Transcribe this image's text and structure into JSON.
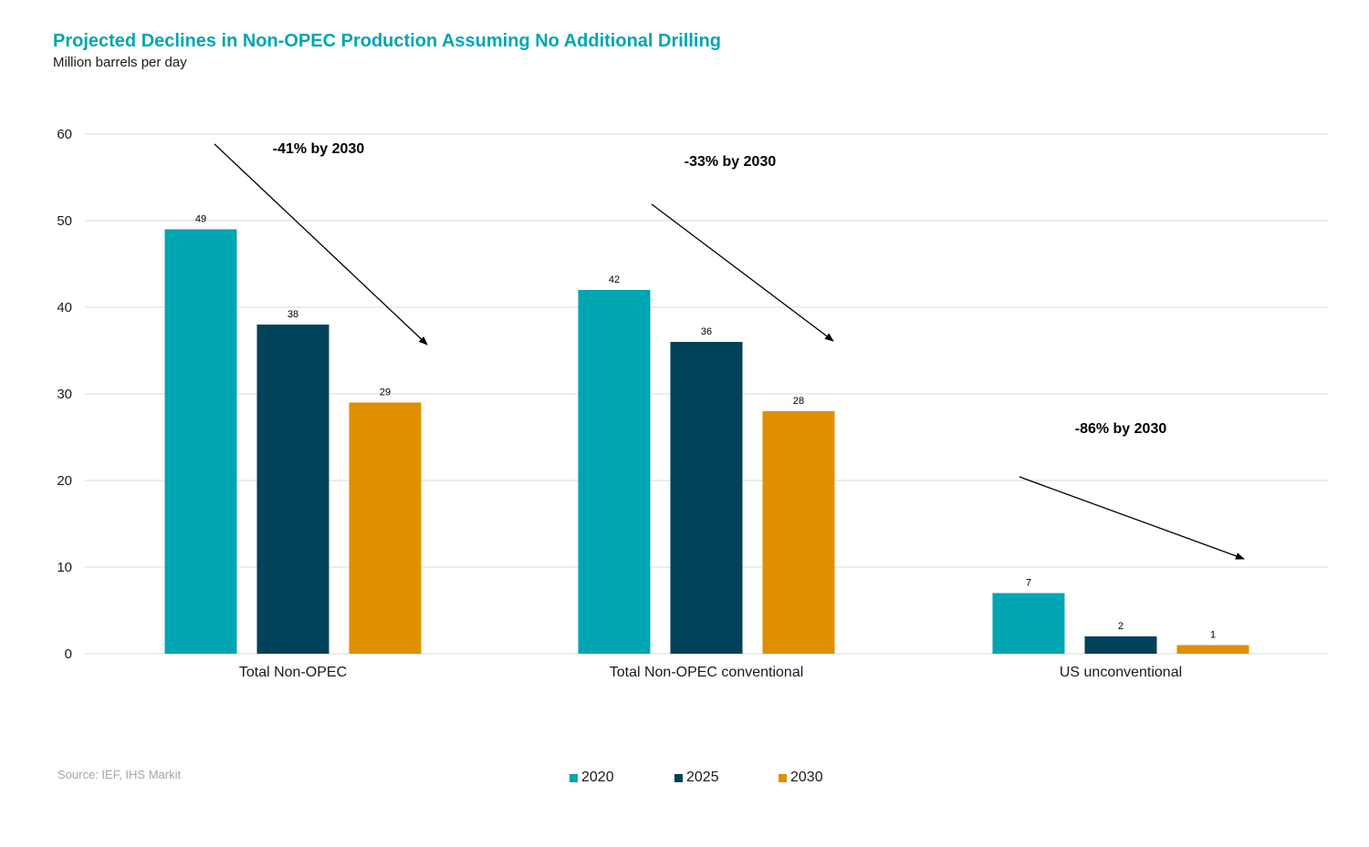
{
  "header": {
    "title": "Projected Declines in Non-OPEC Production Assuming No Additional Drilling",
    "subtitle": "Million barrels per day"
  },
  "footer": {
    "source": "Source: IEF, IHS Markit"
  },
  "colors": {
    "title": "#00A5B2",
    "series_2020": "#00A5B2",
    "series_2025": "#00425A",
    "series_2030": "#E08F00",
    "grid": "#d9d9d9",
    "source": "#a6a6a6"
  },
  "chart_data": {
    "type": "bar",
    "title": "Projected Declines in Non-OPEC Production Assuming No Additional Drilling",
    "ylabel": "Million barrels per day",
    "xlabel": "",
    "categories": [
      "Total Non-OPEC",
      "Total Non-OPEC conventional",
      "US unconventional"
    ],
    "series": [
      {
        "name": "2020",
        "values": [
          49,
          42,
          7
        ]
      },
      {
        "name": "2025",
        "values": [
          38,
          36,
          2
        ]
      },
      {
        "name": "2030",
        "values": [
          29,
          28,
          1
        ]
      }
    ],
    "ylim": [
      0,
      60
    ],
    "yticks": [
      0,
      10,
      20,
      30,
      40,
      50,
      60
    ],
    "grid": true,
    "legend_position": "bottom",
    "annotations": [
      {
        "text": "-41% by 2030",
        "category": "Total Non-OPEC"
      },
      {
        "text": "-33% by 2030",
        "category": "Total Non-OPEC conventional"
      },
      {
        "text": "-86% by 2030",
        "category": "US unconventional"
      }
    ]
  }
}
